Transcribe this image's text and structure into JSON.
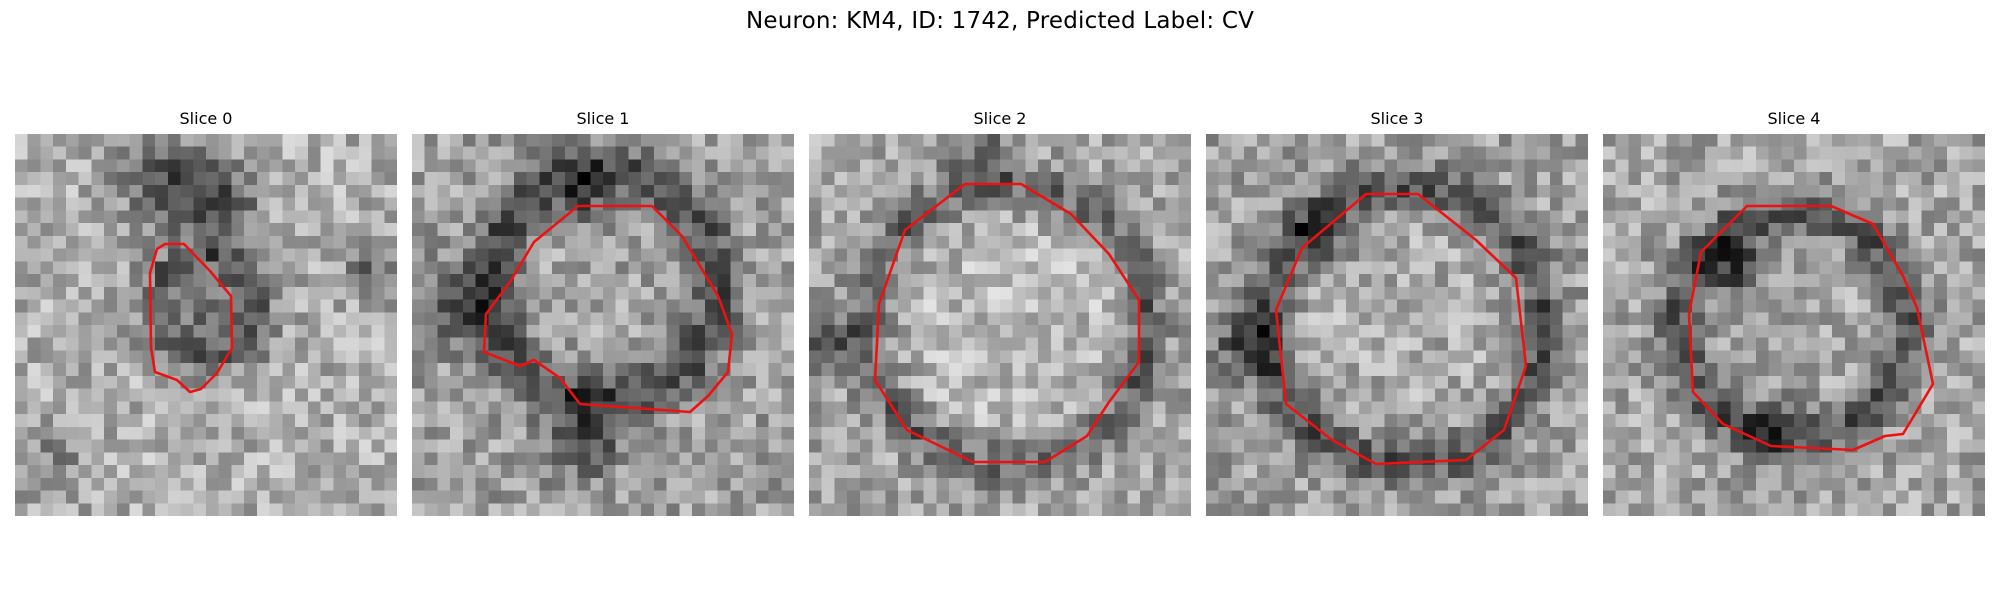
{
  "figure": {
    "title": "Neuron: KM4, ID: 1742, Predicted Label: CV",
    "contour_color": "#ee1111"
  },
  "panels": [
    {
      "label": "Slice 0"
    },
    {
      "label": "Slice 1"
    },
    {
      "label": "Slice 2"
    },
    {
      "label": "Slice 3"
    },
    {
      "label": "Slice 4"
    }
  ]
}
